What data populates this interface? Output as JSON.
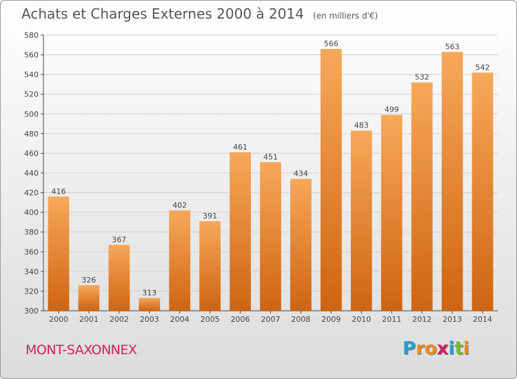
{
  "title": "Achats et Charges Externes 2000 à 2014",
  "subtitle": "(en milliers d'€)",
  "commune": "MONT-SAXONNEX",
  "brand": {
    "letters": [
      "P",
      "r",
      "o",
      "x",
      "i",
      "t",
      "i"
    ],
    "colors": [
      "#2a9fd8",
      "#f08a1c",
      "#f08a1c",
      "#d0215f",
      "#2a9fd8",
      "#7cb82f",
      "#f08a1c"
    ]
  },
  "colors": {
    "bar_top": "#f7a85a",
    "bar_bottom": "#cf6410",
    "grid": "#cfcfcf",
    "title": "#555555",
    "commune": "#d0215f"
  },
  "chart_data": {
    "type": "bar",
    "title": "Achats et Charges Externes 2000 à 2014",
    "subtitle": "(en milliers d'€)",
    "categories": [
      "2000",
      "2001",
      "2002",
      "2003",
      "2004",
      "2005",
      "2006",
      "2007",
      "2008",
      "2009",
      "2010",
      "2011",
      "2012",
      "2013",
      "2014"
    ],
    "values": [
      416,
      326,
      367,
      313,
      402,
      391,
      461,
      451,
      434,
      566,
      483,
      499,
      532,
      563,
      542
    ],
    "ylim": [
      300,
      580
    ],
    "yticks": [
      300,
      320,
      340,
      360,
      380,
      400,
      420,
      440,
      460,
      480,
      500,
      520,
      540,
      560,
      580
    ],
    "grid": true,
    "data_labels": true
  }
}
